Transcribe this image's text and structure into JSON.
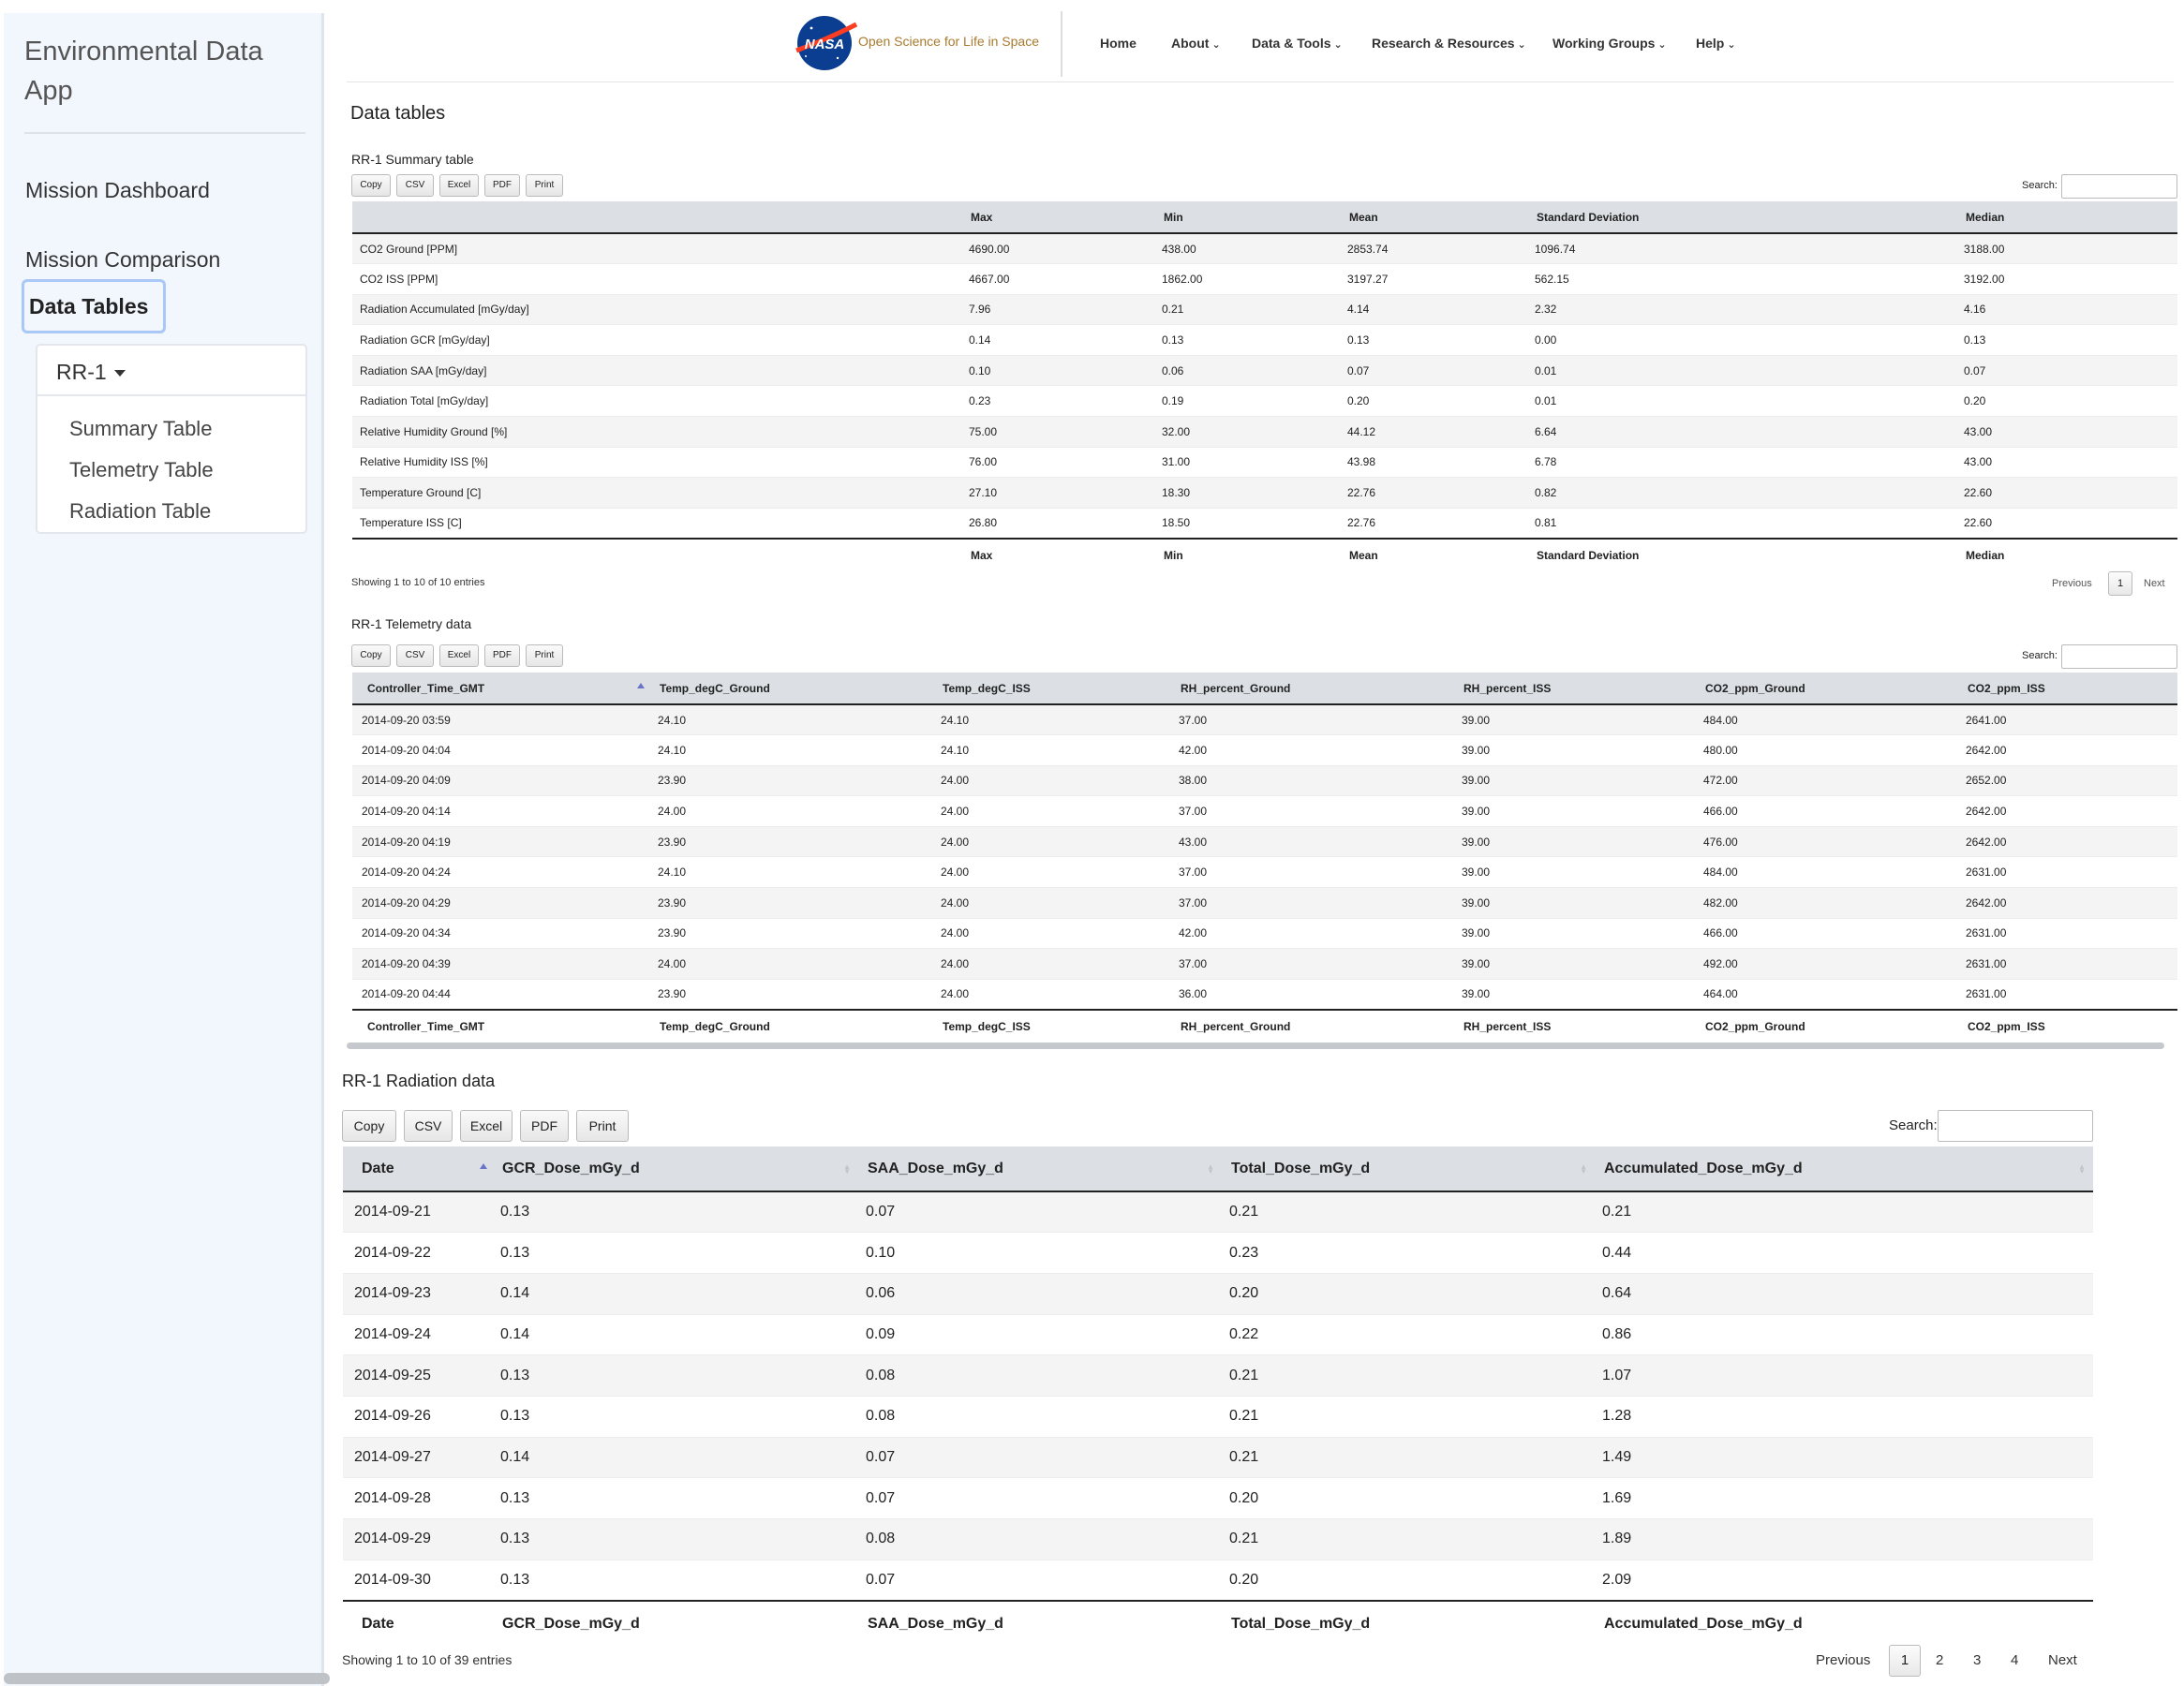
{
  "sidebar": {
    "title": "Environmental Data App",
    "links": {
      "dashboard": "Mission Dashboard",
      "comparison": "Mission Comparison",
      "data_tables": "Data Tables"
    },
    "dropdown": "RR-1",
    "sub_items": [
      "Summary Table",
      "Telemetry Table",
      "Radiation Table"
    ]
  },
  "header": {
    "logo_text": "NASA",
    "tagline": "Open Science for Life in Space",
    "nav": [
      "Home",
      "About",
      "Data & Tools",
      "Research & Resources",
      "Working Groups",
      "Help"
    ]
  },
  "page_title": "Data tables",
  "buttons": [
    "Copy",
    "CSV",
    "Excel",
    "PDF",
    "Print"
  ],
  "search_label": "Search:",
  "summary": {
    "title": "RR-1 Summary table",
    "columns": [
      "",
      "Max",
      "Min",
      "Mean",
      "Standard Deviation",
      "Median"
    ],
    "rows": [
      [
        "CO2 Ground [PPM]",
        "4690.00",
        "438.00",
        "2853.74",
        "1096.74",
        "3188.00"
      ],
      [
        "CO2 ISS [PPM]",
        "4667.00",
        "1862.00",
        "3197.27",
        "562.15",
        "3192.00"
      ],
      [
        "Radiation Accumulated [mGy/day]",
        "7.96",
        "0.21",
        "4.14",
        "2.32",
        "4.16"
      ],
      [
        "Radiation GCR [mGy/day]",
        "0.14",
        "0.13",
        "0.13",
        "0.00",
        "0.13"
      ],
      [
        "Radiation SAA [mGy/day]",
        "0.10",
        "0.06",
        "0.07",
        "0.01",
        "0.07"
      ],
      [
        "Radiation Total [mGy/day]",
        "0.23",
        "0.19",
        "0.20",
        "0.01",
        "0.20"
      ],
      [
        "Relative Humidity Ground [%]",
        "75.00",
        "32.00",
        "44.12",
        "6.64",
        "43.00"
      ],
      [
        "Relative Humidity ISS [%]",
        "76.00",
        "31.00",
        "43.98",
        "6.78",
        "43.00"
      ],
      [
        "Temperature Ground [C]",
        "27.10",
        "18.30",
        "22.76",
        "0.82",
        "22.60"
      ],
      [
        "Temperature ISS [C]",
        "26.80",
        "18.50",
        "22.76",
        "0.81",
        "22.60"
      ]
    ],
    "info": "Showing 1 to 10 of 10 entries",
    "pagination": {
      "previous": "Previous",
      "pages": [
        "1"
      ],
      "next": "Next"
    }
  },
  "telemetry": {
    "title": "RR-1 Telemetry data",
    "columns": [
      "Controller_Time_GMT",
      "Temp_degC_Ground",
      "Temp_degC_ISS",
      "RH_percent_Ground",
      "RH_percent_ISS",
      "CO2_ppm_Ground",
      "CO2_ppm_ISS"
    ],
    "rows": [
      [
        "2014-09-20 03:59",
        "24.10",
        "24.10",
        "37.00",
        "39.00",
        "484.00",
        "2641.00"
      ],
      [
        "2014-09-20 04:04",
        "24.10",
        "24.10",
        "42.00",
        "39.00",
        "480.00",
        "2642.00"
      ],
      [
        "2014-09-20 04:09",
        "23.90",
        "24.00",
        "38.00",
        "39.00",
        "472.00",
        "2652.00"
      ],
      [
        "2014-09-20 04:14",
        "24.00",
        "24.00",
        "37.00",
        "39.00",
        "466.00",
        "2642.00"
      ],
      [
        "2014-09-20 04:19",
        "23.90",
        "24.00",
        "43.00",
        "39.00",
        "476.00",
        "2642.00"
      ],
      [
        "2014-09-20 04:24",
        "24.10",
        "24.00",
        "37.00",
        "39.00",
        "484.00",
        "2631.00"
      ],
      [
        "2014-09-20 04:29",
        "23.90",
        "24.00",
        "37.00",
        "39.00",
        "482.00",
        "2642.00"
      ],
      [
        "2014-09-20 04:34",
        "23.90",
        "24.00",
        "42.00",
        "39.00",
        "466.00",
        "2631.00"
      ],
      [
        "2014-09-20 04:39",
        "24.00",
        "24.00",
        "37.00",
        "39.00",
        "492.00",
        "2631.00"
      ],
      [
        "2014-09-20 04:44",
        "23.90",
        "24.00",
        "36.00",
        "39.00",
        "464.00",
        "2631.00"
      ]
    ]
  },
  "radiation": {
    "title": "RR-1 Radiation data",
    "columns": [
      "Date",
      "GCR_Dose_mGy_d",
      "SAA_Dose_mGy_d",
      "Total_Dose_mGy_d",
      "Accumulated_Dose_mGy_d"
    ],
    "rows": [
      [
        "2014-09-21",
        "0.13",
        "0.07",
        "0.21",
        "0.21"
      ],
      [
        "2014-09-22",
        "0.13",
        "0.10",
        "0.23",
        "0.44"
      ],
      [
        "2014-09-23",
        "0.14",
        "0.06",
        "0.20",
        "0.64"
      ],
      [
        "2014-09-24",
        "0.14",
        "0.09",
        "0.22",
        "0.86"
      ],
      [
        "2014-09-25",
        "0.13",
        "0.08",
        "0.21",
        "1.07"
      ],
      [
        "2014-09-26",
        "0.13",
        "0.08",
        "0.21",
        "1.28"
      ],
      [
        "2014-09-27",
        "0.14",
        "0.07",
        "0.21",
        "1.49"
      ],
      [
        "2014-09-28",
        "0.13",
        "0.07",
        "0.20",
        "1.69"
      ],
      [
        "2014-09-29",
        "0.13",
        "0.08",
        "0.21",
        "1.89"
      ],
      [
        "2014-09-30",
        "0.13",
        "0.07",
        "0.20",
        "2.09"
      ]
    ],
    "info": "Showing 1 to 10 of 39 entries",
    "pagination": {
      "previous": "Previous",
      "pages": [
        "1",
        "2",
        "3",
        "4"
      ],
      "next": "Next"
    }
  },
  "colors": {
    "sidebar_bg": "#f2f6fd",
    "header_bg": "#dce0e5",
    "active_outline": "#a9c8f6",
    "sort_arrow": "#6b74c9",
    "nasa_blue": "#0b3d91",
    "nasa_red": "#fc3d21"
  }
}
